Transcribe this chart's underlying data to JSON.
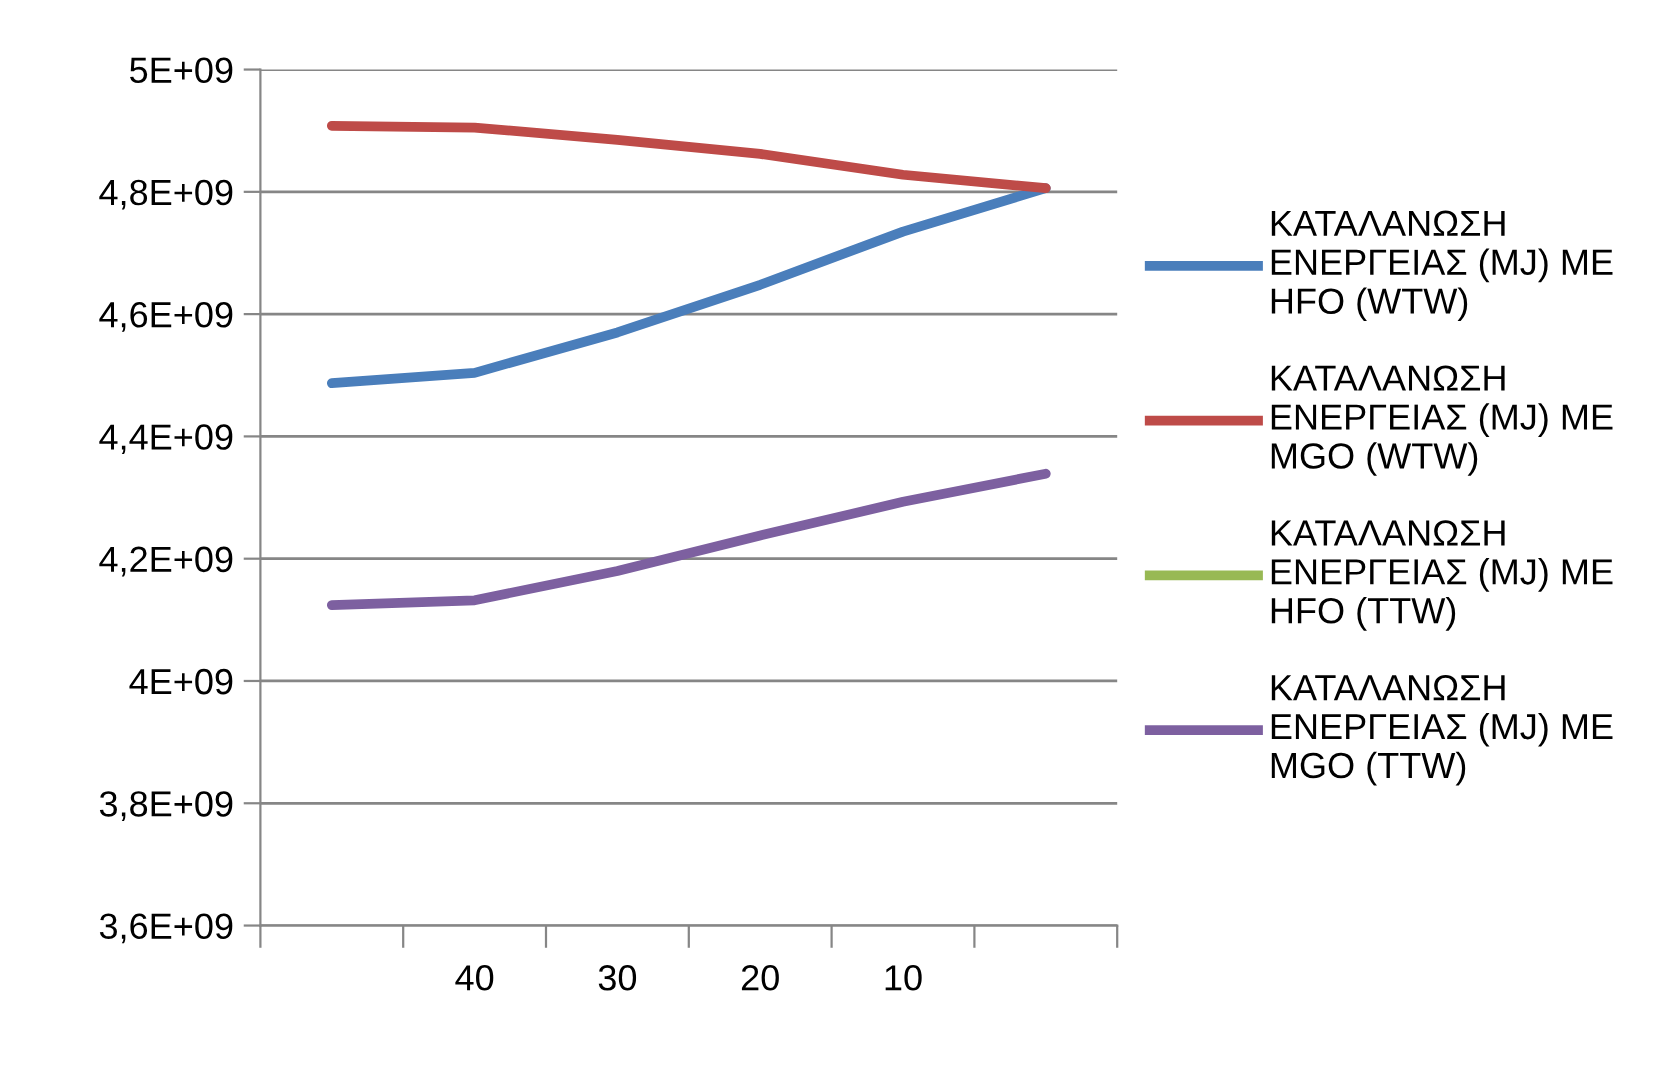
{
  "chart_data": {
    "type": "line",
    "categories": [
      null,
      "40",
      "30",
      "20",
      "10",
      null
    ],
    "series": [
      {
        "name": "ΚΑΤΑΛΑΝΩΣΗ ΕΝΕΡΓΕΙΑΣ (MJ) ΜΕ HFO (WTW)",
        "color": "#4a7ebb",
        "values": [
          4487000000.0,
          4504000000.0,
          4570000000.0,
          4648000000.0,
          4735000000.0,
          4806000000.0
        ]
      },
      {
        "name": "ΚΑΤΑΛΑΝΩΣΗ ΕΝΕΡΓΕΙΑΣ (MJ) ΜΕ MGO (WTW)",
        "color": "#be4b48",
        "values": [
          4908000000.0,
          4905000000.0,
          4885000000.0,
          4862000000.0,
          4828000000.0,
          4806000000.0
        ]
      },
      {
        "name": "ΚΑΤΑΛΑΝΩΣΗ ΕΝΕΡΓΕΙΑΣ (MJ) ΜΕ HFO (TTW)",
        "color": "#98b954",
        "values": [
          null,
          null,
          null,
          null,
          null,
          null
        ]
      },
      {
        "name": "ΚΑΤΑΛΑΝΩΣΗ ΕΝΕΡΓΕΙΑΣ (MJ) ΜΕ MGO (TTW)",
        "color": "#7d60a0",
        "values": [
          4124000000.0,
          4132000000.0,
          4180000000.0,
          4238000000.0,
          4293000000.0,
          4339000000.0
        ]
      }
    ],
    "ylim": [
      3600000000.0,
      5000000000.0
    ],
    "yticks": [
      {
        "value": 3600000000.0,
        "label": "3,6E+09"
      },
      {
        "value": 3800000000.0,
        "label": "3,8E+09"
      },
      {
        "value": 4000000000.0,
        "label": "4E+09"
      },
      {
        "value": 4200000000.0,
        "label": "4,2E+09"
      },
      {
        "value": 4400000000.0,
        "label": "4,4E+09"
      },
      {
        "value": 4600000000.0,
        "label": "4,6E+09"
      },
      {
        "value": 4800000000.0,
        "label": "4,8E+09"
      },
      {
        "value": 5000000000.0,
        "label": "5E+09"
      }
    ],
    "grid": "y",
    "legend": "right",
    "marker": "none",
    "line_style": "solid"
  }
}
